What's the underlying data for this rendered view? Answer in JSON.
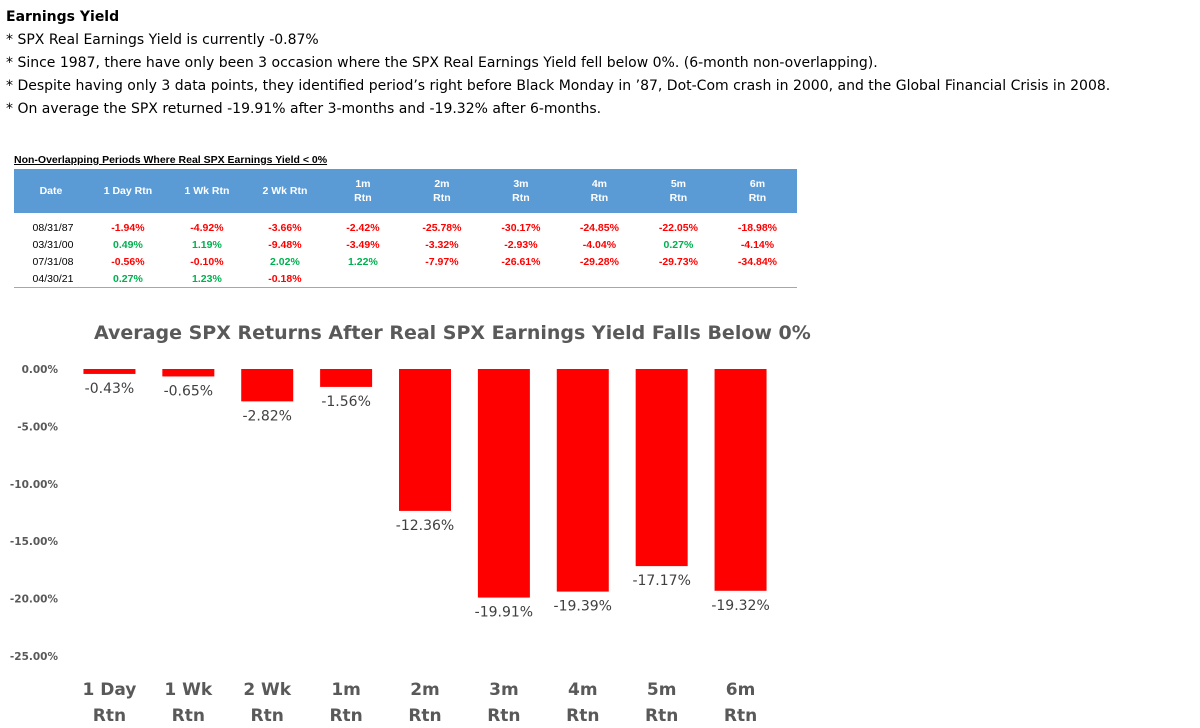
{
  "notes": {
    "heading": "Earnings Yield",
    "lines": [
      "* SPX Real Earnings Yield is currently -0.87%",
      "* Since 1987, there have only been 3 occasion where the SPX Real Earnings Yield fell below 0%. (6-month non-overlapping).",
      "* Despite having only 3 data points, they identified period’s right before Black Monday in ’87, Dot-Com crash in 2000, and the Global Financial Crisis in 2008.",
      "* On average the SPX returned -19.91% after 3-months and -19.32% after 6-months."
    ]
  },
  "table": {
    "title": "Non-Overlapping Periods Where Real SPX Earnings Yield < 0%",
    "headers": [
      [
        "Date"
      ],
      [
        "1 Day Rtn"
      ],
      [
        "1 Wk Rtn"
      ],
      [
        "2 Wk Rtn"
      ],
      [
        "1m",
        "Rtn"
      ],
      [
        "2m",
        "Rtn"
      ],
      [
        "3m",
        "Rtn"
      ],
      [
        "4m",
        "Rtn"
      ],
      [
        "5m",
        "Rtn"
      ],
      [
        "6m",
        "Rtn"
      ]
    ],
    "rows": [
      {
        "date": "08/31/87",
        "values": [
          "-1.94%",
          "-4.92%",
          "-3.66%",
          "-2.42%",
          "-25.78%",
          "-30.17%",
          "-24.85%",
          "-22.05%",
          "-18.98%"
        ]
      },
      {
        "date": "03/31/00",
        "values": [
          "0.49%",
          "1.19%",
          "-9.48%",
          "-3.49%",
          "-3.32%",
          "-2.93%",
          "-4.04%",
          "0.27%",
          "-4.14%"
        ]
      },
      {
        "date": "07/31/08",
        "values": [
          "-0.56%",
          "-0.10%",
          "2.02%",
          "1.22%",
          "-7.97%",
          "-26.61%",
          "-29.28%",
          "-29.73%",
          "-34.84%"
        ]
      },
      {
        "date": "04/30/21",
        "values": [
          "0.27%",
          "1.23%",
          "-0.18%",
          "",
          "",
          "",
          "",
          "",
          ""
        ]
      }
    ],
    "colors": {
      "header_bg": "#5b9bd5",
      "negative": "#ff0000",
      "positive": "#00b050"
    }
  },
  "chart_data": {
    "type": "bar",
    "title": "Average SPX Returns After Real SPX Earnings Yield Falls Below 0%",
    "categories": [
      [
        "1 Day",
        "Rtn"
      ],
      [
        "1 Wk",
        "Rtn"
      ],
      [
        "2 Wk",
        "Rtn"
      ],
      [
        "1m",
        "Rtn"
      ],
      [
        "2m",
        "Rtn"
      ],
      [
        "3m",
        "Rtn"
      ],
      [
        "4m",
        "Rtn"
      ],
      [
        "5m",
        "Rtn"
      ],
      [
        "6m",
        "Rtn"
      ]
    ],
    "values": [
      -0.43,
      -0.65,
      -2.82,
      -1.56,
      -12.36,
      -19.91,
      -19.39,
      -17.17,
      -19.32
    ],
    "data_labels": [
      "-0.43%",
      "-0.65%",
      "-2.82%",
      "-1.56%",
      "-12.36%",
      "-19.91%",
      "-19.39%",
      "-17.17%",
      "-19.32%"
    ],
    "ylim": [
      -25,
      0
    ],
    "yticks": [
      0,
      -5,
      -10,
      -15,
      -20,
      -25
    ],
    "ytick_labels": [
      "0.00%",
      "-5.00%",
      "-10.00%",
      "-15.00%",
      "-20.00%",
      "-25.00%"
    ],
    "bar_color": "#ff0000",
    "grid": false,
    "legend": "none"
  }
}
